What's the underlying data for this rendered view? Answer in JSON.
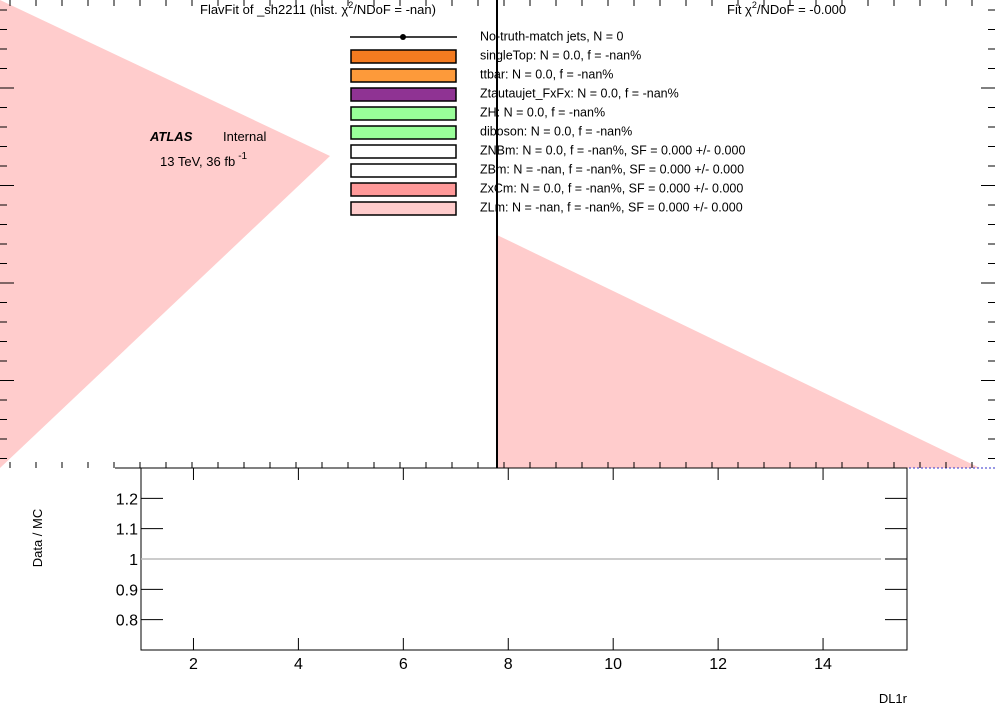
{
  "chart_data": {
    "type": "ratio",
    "title_parts": [
      "FlavFit of _sh2211 (hist.   χ",
      "2",
      "/NDoF = -nan)"
    ],
    "fit_parts": [
      "Fit  χ",
      "2",
      "/NDoF = -0.000"
    ],
    "atlas": "ATLAS",
    "atlas_status": "Internal",
    "lumi_parts": [
      "13 TeV,  36 fb",
      "-1"
    ],
    "legend": [
      {
        "name": "No-truth-match jets, N =   0",
        "color": "#000000",
        "style": "marker"
      },
      {
        "name": "singleTop: N = 0.0, f = -nan%",
        "color": "#f47b20",
        "style": "box"
      },
      {
        "name": "ttbar: N = 0.0, f = -nan%",
        "color": "#fd9a3a",
        "style": "box"
      },
      {
        "name": "Ztautaujet_FxFx: N = 0.0, f = -nan%",
        "color": "#8f3393",
        "style": "box"
      },
      {
        "name": "ZH: N = 0.0, f = -nan%",
        "color": "#99ff99",
        "style": "box"
      },
      {
        "name": "diboson: N = 0.0, f = -nan%",
        "color": "#99ff99",
        "style": "box"
      },
      {
        "name": "ZNBm: N = 0.0, f = -nan%, SF = 0.000 +/- 0.000",
        "color": "#ffffff",
        "style": "box"
      },
      {
        "name": "ZBm: N = -nan, f = -nan%, SF = 0.000 +/- 0.000",
        "color": "#ffffff",
        "style": "box"
      },
      {
        "name": "ZxCm: N = 0.0, f = -nan%, SF = 0.000 +/- 0.000",
        "color": "#ff9999",
        "style": "box"
      },
      {
        "name": "ZLm: N = -nan, f = -nan%, SF = 0.000 +/- 0.000",
        "color": "#ffcccc",
        "style": "box"
      }
    ],
    "y_label": "Data / MC",
    "x_label": "DL1r",
    "xlim": [
      1,
      15.6
    ],
    "xticks": [
      2,
      4,
      6,
      8,
      10,
      12,
      14
    ],
    "ylim": [
      0.7,
      1.3
    ],
    "yticks": [
      0.8,
      0.9,
      1,
      1.1,
      1.2
    ],
    "reference_line": 1
  }
}
